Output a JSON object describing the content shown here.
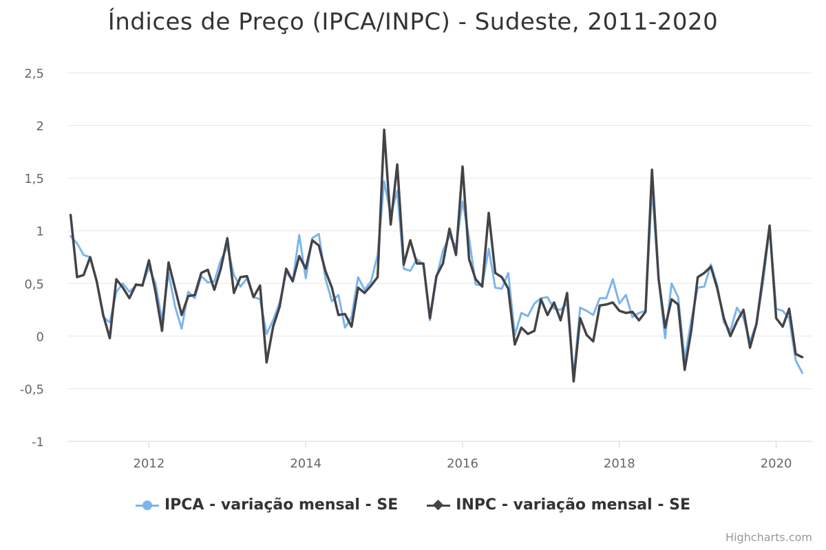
{
  "chart_data": {
    "type": "line",
    "title": "Índices de Preço (IPCA/INPC) - Sudeste, 2011-2020",
    "xlabel": "",
    "ylabel": "",
    "ylim": [
      -1,
      2.5
    ],
    "yticks": [
      -1,
      -0.5,
      0,
      0.5,
      1,
      1.5,
      2,
      2.5
    ],
    "ytick_labels": [
      "-1",
      "-0,5",
      "0",
      "0,5",
      "1",
      "1,5",
      "2",
      "2,5"
    ],
    "xticks": [
      2012,
      2014,
      2016,
      2018,
      2020
    ],
    "xtick_labels": [
      "2012",
      "2014",
      "2016",
      "2018",
      "2020"
    ],
    "x_start": 2011.0,
    "x_step": 0.08333,
    "legend_position": "bottom-center",
    "grid": true,
    "series": [
      {
        "name": "IPCA - variação mensal - SE",
        "color": "#7cb5ec",
        "marker": "circle",
        "values": [
          0.95,
          0.88,
          0.77,
          0.75,
          0.52,
          0.18,
          0.13,
          0.42,
          0.5,
          0.42,
          0.48,
          0.49,
          0.65,
          0.5,
          0.15,
          0.6,
          0.28,
          0.07,
          0.42,
          0.36,
          0.57,
          0.51,
          0.52,
          0.72,
          0.85,
          0.58,
          0.47,
          0.55,
          0.37,
          0.35,
          0.02,
          0.15,
          0.32,
          0.61,
          0.52,
          0.96,
          0.55,
          0.93,
          0.97,
          0.55,
          0.33,
          0.39,
          0.08,
          0.18,
          0.56,
          0.44,
          0.52,
          0.77,
          1.47,
          1.15,
          1.38,
          0.64,
          0.62,
          0.73,
          0.68,
          0.15,
          0.55,
          0.81,
          0.95,
          0.85,
          1.28,
          0.93,
          0.49,
          0.48,
          0.83,
          0.46,
          0.45,
          0.6,
          0.01,
          0.22,
          0.19,
          0.31,
          0.36,
          0.37,
          0.26,
          0.25,
          0.31,
          -0.38,
          0.27,
          0.24,
          0.2,
          0.36,
          0.36,
          0.54,
          0.31,
          0.39,
          0.18,
          0.22,
          0.24,
          1.4,
          0.55,
          -0.02,
          0.5,
          0.37,
          -0.22,
          0.15,
          0.46,
          0.47,
          0.68,
          0.48,
          0.13,
          0.05,
          0.27,
          0.17,
          -0.05,
          0.12,
          0.51,
          1.03,
          0.26,
          0.24,
          0.17,
          -0.23,
          -0.35
        ],
        "ids": [
          "jan-2011",
          "fev-2011",
          "mar-2011",
          "abr-2011",
          "mai-2011",
          "jun-2011",
          "jul-2011",
          "ago-2011",
          "set-2011",
          "out-2011",
          "nov-2011",
          "dez-2011",
          "jan-2012",
          "fev-2012",
          "mar-2012",
          "abr-2012",
          "mai-2012",
          "jun-2012",
          "jul-2012",
          "ago-2012",
          "set-2012",
          "out-2012",
          "nov-2012",
          "dez-2012",
          "jan-2013",
          "fev-2013",
          "mar-2013",
          "abr-2013",
          "mai-2013",
          "jun-2013",
          "jul-2013",
          "ago-2013",
          "set-2013",
          "out-2013",
          "nov-2013",
          "dez-2013",
          "jan-2014",
          "fev-2014",
          "mar-2014",
          "abr-2014",
          "mai-2014",
          "jun-2014",
          "jul-2014",
          "ago-2014",
          "set-2014",
          "out-2014",
          "nov-2014",
          "dez-2014",
          "jan-2015",
          "fev-2015",
          "mar-2015",
          "abr-2015",
          "mai-2015",
          "jun-2015",
          "jul-2015",
          "ago-2015",
          "set-2015",
          "out-2015",
          "nov-2015",
          "dez-2015",
          "jan-2016",
          "fev-2016",
          "mar-2016",
          "abr-2016",
          "mai-2016",
          "jun-2016",
          "jul-2016",
          "ago-2016",
          "set-2016",
          "out-2016",
          "nov-2016",
          "dez-2016",
          "jan-2017",
          "fev-2017",
          "mar-2017",
          "abr-2017",
          "mai-2017",
          "jun-2017",
          "jul-2017",
          "ago-2017",
          "set-2017",
          "out-2017",
          "nov-2017",
          "dez-2017",
          "jan-2018",
          "fev-2018",
          "mar-2018",
          "abr-2018",
          "mai-2018",
          "jun-2018",
          "jul-2018",
          "ago-2018",
          "set-2018",
          "out-2018",
          "nov-2018",
          "dez-2018",
          "jan-2019",
          "fev-2019",
          "mar-2019",
          "abr-2019",
          "mai-2019",
          "jun-2019",
          "jul-2019",
          "ago-2019",
          "set-2019",
          "out-2019",
          "nov-2019",
          "dez-2019",
          "jan-2020",
          "fev-2020",
          "mar-2020",
          "abr-2020",
          "mai-2020"
        ]
      },
      {
        "name": "INPC - variação mensal - SE",
        "color": "#434348",
        "marker": "diamond",
        "values": [
          1.15,
          0.56,
          0.58,
          0.75,
          0.52,
          0.2,
          -0.02,
          0.54,
          0.46,
          0.36,
          0.49,
          0.48,
          0.72,
          0.42,
          0.05,
          0.7,
          0.45,
          0.2,
          0.38,
          0.39,
          0.6,
          0.63,
          0.44,
          0.64,
          0.93,
          0.41,
          0.56,
          0.57,
          0.37,
          0.48,
          -0.25,
          0.09,
          0.28,
          0.64,
          0.52,
          0.76,
          0.64,
          0.91,
          0.86,
          0.62,
          0.46,
          0.2,
          0.21,
          0.09,
          0.46,
          0.41,
          0.48,
          0.56,
          1.96,
          1.06,
          1.63,
          0.68,
          0.91,
          0.69,
          0.69,
          0.17,
          0.57,
          0.69,
          1.02,
          0.77,
          1.61,
          0.73,
          0.54,
          0.47,
          1.17,
          0.6,
          0.56,
          0.45,
          -0.08,
          0.08,
          0.02,
          0.05,
          0.35,
          0.2,
          0.32,
          0.15,
          0.41,
          -0.43,
          0.17,
          0.01,
          -0.05,
          0.29,
          0.3,
          0.32,
          0.24,
          0.22,
          0.23,
          0.15,
          0.23,
          1.58,
          0.55,
          0.08,
          0.35,
          0.3,
          -0.32,
          0.05,
          0.56,
          0.6,
          0.66,
          0.45,
          0.17,
          0.0,
          0.14,
          0.25,
          -0.11,
          0.12,
          0.58,
          1.05,
          0.17,
          0.09,
          0.26,
          -0.17,
          -0.2
        ],
        "ids": [
          "jan-2011",
          "fev-2011",
          "mar-2011",
          "abr-2011",
          "mai-2011",
          "jun-2011",
          "jul-2011",
          "ago-2011",
          "set-2011",
          "out-2011",
          "nov-2011",
          "dez-2011",
          "jan-2012",
          "fev-2012",
          "mar-2012",
          "abr-2012",
          "mai-2012",
          "jun-2012",
          "jul-2012",
          "ago-2012",
          "set-2012",
          "out-2012",
          "nov-2012",
          "dez-2012",
          "jan-2013",
          "fev-2013",
          "mar-2013",
          "abr-2013",
          "mai-2013",
          "jun-2013",
          "jul-2013",
          "ago-2013",
          "set-2013",
          "out-2013",
          "nov-2013",
          "dez-2013",
          "jan-2014",
          "fev-2014",
          "mar-2014",
          "abr-2014",
          "mai-2014",
          "jun-2014",
          "jul-2014",
          "ago-2014",
          "set-2014",
          "out-2014",
          "nov-2014",
          "dez-2014",
          "jan-2015",
          "fev-2015",
          "mar-2015",
          "abr-2015",
          "mai-2015",
          "jun-2015",
          "jul-2015",
          "ago-2015",
          "set-2015",
          "out-2015",
          "nov-2015",
          "dez-2015",
          "jan-2016",
          "fev-2016",
          "mar-2016",
          "abr-2016",
          "mai-2016",
          "jun-2016",
          "jul-2016",
          "ago-2016",
          "set-2016",
          "out-2016",
          "nov-2016",
          "dez-2016",
          "jan-2017",
          "fev-2017",
          "mar-2017",
          "abr-2017",
          "mai-2017",
          "jun-2017",
          "jul-2017",
          "ago-2017",
          "set-2017",
          "out-2017",
          "nov-2017",
          "dez-2017",
          "jan-2018",
          "fev-2018",
          "mar-2018",
          "abr-2018",
          "mai-2018",
          "jun-2018",
          "jul-2018",
          "ago-2018",
          "set-2018",
          "out-2018",
          "nov-2018",
          "dez-2018",
          "jan-2019",
          "fev-2019",
          "mar-2019",
          "abr-2019",
          "mai-2019",
          "jun-2019",
          "jul-2019",
          "ago-2019",
          "set-2019",
          "out-2019",
          "nov-2019",
          "dez-2019",
          "jan-2020",
          "fev-2020",
          "mar-2020",
          "abr-2020",
          "mai-2020"
        ]
      }
    ]
  },
  "legend": {
    "items": [
      {
        "label": "IPCA - variação mensal - SE",
        "color": "#7cb5ec",
        "symbol": "circle"
      },
      {
        "label": "INPC - variação mensal - SE",
        "color": "#434348",
        "symbol": "diamond"
      }
    ]
  },
  "credits": {
    "label": "Highcharts.com"
  },
  "colors": {
    "grid": "#e6e6e6",
    "axis": "#ccd6eb",
    "tick_text": "#666666"
  }
}
